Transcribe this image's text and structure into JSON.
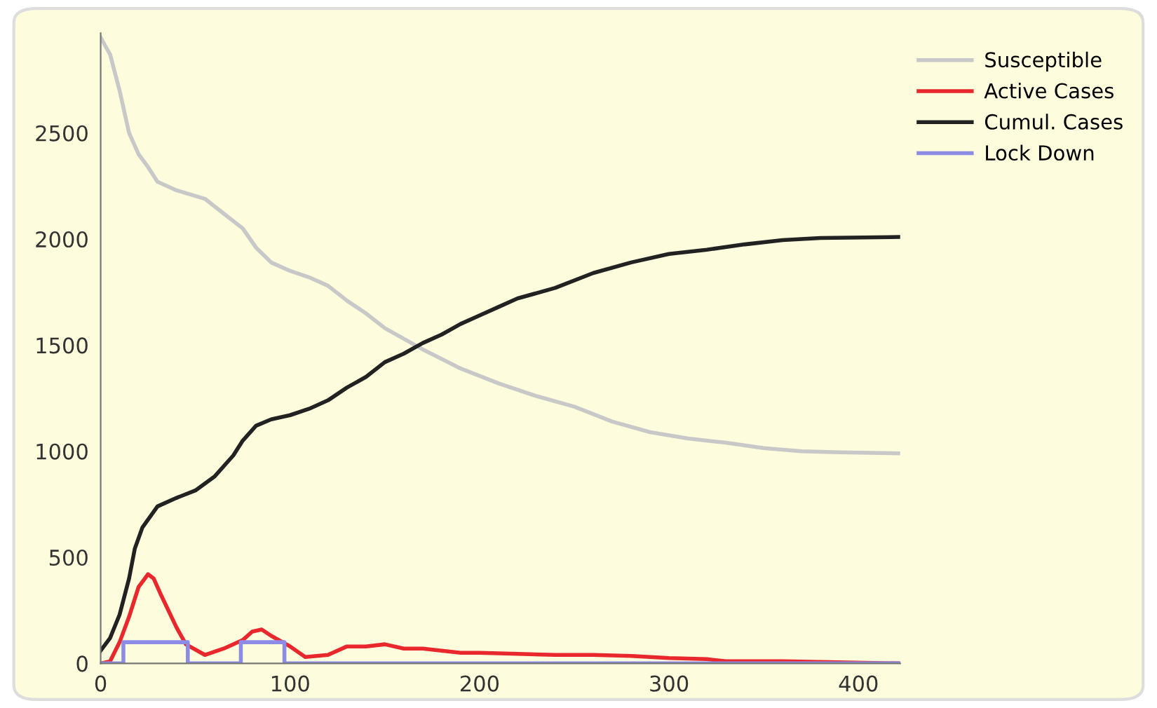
{
  "chart_data": {
    "type": "line",
    "xlim": [
      0,
      422
    ],
    "ylim": [
      0,
      2970
    ],
    "xticks": [
      0,
      100,
      200,
      300,
      400
    ],
    "yticks": [
      0,
      500,
      1000,
      1500,
      2000,
      2500
    ],
    "grid": false,
    "legend": "top right",
    "marker": "none",
    "line_style": "solid",
    "series": [
      {
        "name": "Susceptible",
        "color": "#c8c8c8",
        "x": [
          0,
          5,
          10,
          15,
          20,
          25,
          30,
          40,
          55,
          65,
          75,
          82,
          90,
          100,
          110,
          120,
          130,
          140,
          150,
          170,
          190,
          210,
          230,
          250,
          270,
          290,
          310,
          330,
          350,
          370,
          390,
          422
        ],
        "values": [
          2950,
          2870,
          2700,
          2500,
          2400,
          2340,
          2270,
          2230,
          2190,
          2120,
          2050,
          1960,
          1890,
          1850,
          1820,
          1780,
          1710,
          1650,
          1580,
          1480,
          1390,
          1320,
          1260,
          1210,
          1140,
          1090,
          1060,
          1040,
          1015,
          1000,
          995,
          990
        ]
      },
      {
        "name": "Active Cases",
        "color": "#e8282c",
        "x": [
          0,
          5,
          10,
          15,
          20,
          25,
          28,
          32,
          40,
          45,
          55,
          65,
          75,
          80,
          85,
          90,
          100,
          108,
          120,
          130,
          140,
          150,
          160,
          170,
          180,
          190,
          200,
          220,
          240,
          260,
          280,
          300,
          320,
          330,
          360,
          422
        ],
        "values": [
          0,
          10,
          100,
          220,
          360,
          420,
          400,
          320,
          170,
          90,
          40,
          70,
          110,
          150,
          160,
          130,
          80,
          30,
          40,
          80,
          80,
          90,
          70,
          70,
          60,
          50,
          50,
          45,
          40,
          40,
          35,
          25,
          20,
          10,
          10,
          0
        ]
      },
      {
        "name": "Cumul. Cases",
        "color": "#222222",
        "x": [
          0,
          5,
          10,
          15,
          18,
          22,
          30,
          40,
          50,
          60,
          70,
          75,
          82,
          90,
          100,
          110,
          120,
          130,
          140,
          150,
          160,
          170,
          180,
          190,
          200,
          210,
          220,
          240,
          260,
          280,
          300,
          320,
          340,
          360,
          380,
          422
        ],
        "values": [
          60,
          120,
          230,
          400,
          540,
          640,
          740,
          780,
          815,
          880,
          980,
          1050,
          1120,
          1150,
          1170,
          1200,
          1240,
          1300,
          1350,
          1420,
          1460,
          1510,
          1550,
          1600,
          1640,
          1680,
          1720,
          1770,
          1840,
          1890,
          1930,
          1950,
          1975,
          1995,
          2005,
          2010
        ]
      },
      {
        "name": "Lock Down",
        "color": "#8c8ce6",
        "x": [
          0,
          12,
          12,
          46,
          46,
          74,
          74,
          97,
          97,
          422
        ],
        "values": [
          0,
          0,
          100,
          100,
          0,
          0,
          100,
          100,
          0,
          0
        ]
      }
    ]
  }
}
